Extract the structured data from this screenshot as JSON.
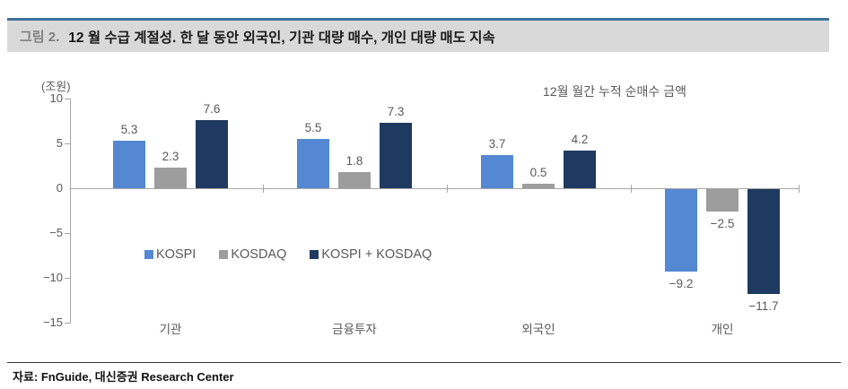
{
  "header": {
    "figure_label": "그림 2.",
    "title": "12 월 수급 계절성. 한 달 동안 외국인, 기관 대량 매수, 개인 대량 매도 지속"
  },
  "annotation": "12월 월간 누적 순매수 금액",
  "footer": {
    "source": "자료: FnGuide, 대신증권 Research Center"
  },
  "colors": {
    "kospi": "#5588D2",
    "kosdaq": "#9D9D9D",
    "kospi_kosdaq": "#1F3A60",
    "axis": "#A6A6A6",
    "header_band": "#D9D9D9",
    "header_rule": "#41719C",
    "muted_text": "#595959"
  },
  "chart_data": {
    "type": "bar",
    "title": "12월 월간 누적 순매수 금액",
    "unit_label": "(조원)",
    "xlabel": "",
    "ylabel": "(조원)",
    "categories": [
      "기관",
      "금융투자",
      "외국인",
      "개인"
    ],
    "series": [
      {
        "name": "KOSPI",
        "color": "#5588D2",
        "values": [
          5.3,
          5.5,
          3.7,
          -9.2
        ],
        "labels": [
          "5.3",
          "5.5",
          "3.7",
          "−9.2"
        ]
      },
      {
        "name": "KOSDAQ",
        "color": "#9D9D9D",
        "values": [
          2.3,
          1.8,
          0.5,
          -2.5
        ],
        "labels": [
          "2.3",
          "1.8",
          "0.5",
          "−2.5"
        ]
      },
      {
        "name": "KOSPI + KOSDAQ",
        "color": "#1F3A60",
        "values": [
          7.6,
          7.3,
          4.2,
          -11.7
        ],
        "labels": [
          "7.6",
          "7.3",
          "4.2",
          "−11.7"
        ]
      }
    ],
    "y_ticks": [
      {
        "value": 10,
        "label": "10"
      },
      {
        "value": 5,
        "label": "5"
      },
      {
        "value": 0,
        "label": "0"
      },
      {
        "value": -5,
        "label": "−5"
      },
      {
        "value": -10,
        "label": "−10"
      },
      {
        "value": -15,
        "label": "−15"
      }
    ],
    "ylim": [
      -15,
      10
    ],
    "grid": false,
    "legend_position": "inside-center-left"
  }
}
